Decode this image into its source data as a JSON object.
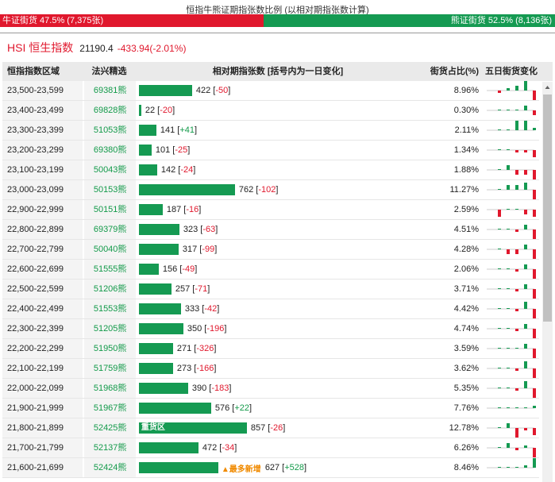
{
  "header": {
    "title": "恒指牛熊证期指张数比例 (以相对期指张数计算)",
    "bull_label": "牛证街货 47.5% (7,375张)",
    "bear_label": "熊证街货 52.5% (8,136张)",
    "bull_pct": 47.5
  },
  "index": {
    "name": "HSI 恒生指数",
    "value": "21190.4",
    "change": "-433.94(-2.01%)"
  },
  "table": {
    "columns": [
      "恒指指数区域",
      "法兴精选",
      "相对期指张数 [括号内为一日变化]",
      "街货占比(%)",
      "五日街货变化"
    ],
    "max_value": 857,
    "rows": [
      {
        "range": "23,500-23,599",
        "code": "69381熊",
        "value": 422,
        "num": "422",
        "change": "-50",
        "sign": "neg",
        "tag": "",
        "note": "",
        "pct": "8.96%",
        "spark": [
          -1,
          1,
          2,
          4,
          -4
        ]
      },
      {
        "range": "23,400-23,499",
        "code": "69828熊",
        "value": 22,
        "num": "22",
        "change": "-20",
        "sign": "neg",
        "tag": "",
        "note": "",
        "pct": "0.30%",
        "spark": [
          0,
          0,
          0,
          2,
          -2
        ]
      },
      {
        "range": "23,300-23,399",
        "code": "51053熊",
        "value": 141,
        "num": "141",
        "change": "+41",
        "sign": "pos",
        "tag": "",
        "note": "",
        "pct": "2.11%",
        "spark": [
          0,
          0,
          4,
          4,
          1
        ]
      },
      {
        "range": "23,200-23,299",
        "code": "69380熊",
        "value": 101,
        "num": "101",
        "change": "-25",
        "sign": "neg",
        "tag": "",
        "note": "",
        "pct": "1.34%",
        "spark": [
          0,
          0,
          -1,
          -1,
          -3
        ]
      },
      {
        "range": "23,100-23,199",
        "code": "50043熊",
        "value": 142,
        "num": "142",
        "change": "-24",
        "sign": "neg",
        "tag": "",
        "note": "",
        "pct": "1.88%",
        "spark": [
          0,
          2,
          -2,
          -2,
          -4
        ]
      },
      {
        "range": "23,000-23,099",
        "code": "50153熊",
        "value": 762,
        "num": "762",
        "change": "-102",
        "sign": "neg",
        "tag": "",
        "note": "",
        "pct": "11.27%",
        "spark": [
          0,
          2,
          2,
          3,
          -4
        ]
      },
      {
        "range": "22,900-22,999",
        "code": "50151熊",
        "value": 187,
        "num": "187",
        "change": "-16",
        "sign": "neg",
        "tag": "",
        "note": "",
        "pct": "2.59%",
        "spark": [
          -3,
          0,
          0,
          -2,
          -3
        ]
      },
      {
        "range": "22,800-22,899",
        "code": "69379熊",
        "value": 323,
        "num": "323",
        "change": "-63",
        "sign": "neg",
        "tag": "",
        "note": "",
        "pct": "4.51%",
        "spark": [
          0,
          0,
          -1,
          2,
          -4
        ]
      },
      {
        "range": "22,700-22,799",
        "code": "50040熊",
        "value": 317,
        "num": "317",
        "change": "-99",
        "sign": "neg",
        "tag": "",
        "note": "",
        "pct": "4.28%",
        "spark": [
          0,
          -2,
          -2,
          2,
          -4
        ]
      },
      {
        "range": "22,600-22,699",
        "code": "51555熊",
        "value": 156,
        "num": "156",
        "change": "-49",
        "sign": "neg",
        "tag": "",
        "note": "",
        "pct": "2.06%",
        "spark": [
          0,
          0,
          -1,
          2,
          -4
        ]
      },
      {
        "range": "22,500-22,599",
        "code": "51206熊",
        "value": 257,
        "num": "257",
        "change": "-71",
        "sign": "neg",
        "tag": "",
        "note": "",
        "pct": "3.71%",
        "spark": [
          0,
          0,
          -1,
          2,
          -4
        ]
      },
      {
        "range": "22,400-22,499",
        "code": "51553熊",
        "value": 333,
        "num": "333",
        "change": "-42",
        "sign": "neg",
        "tag": "",
        "note": "",
        "pct": "4.42%",
        "spark": [
          0,
          0,
          -1,
          3,
          -4
        ]
      },
      {
        "range": "22,300-22,399",
        "code": "51205熊",
        "value": 350,
        "num": "350",
        "change": "-196",
        "sign": "neg",
        "tag": "",
        "note": "",
        "pct": "4.74%",
        "spark": [
          0,
          0,
          -1,
          2,
          -4
        ]
      },
      {
        "range": "22,200-22,299",
        "code": "51950熊",
        "value": 271,
        "num": "271",
        "change": "-326",
        "sign": "neg",
        "tag": "",
        "note": "",
        "pct": "3.59%",
        "spark": [
          0,
          0,
          0,
          2,
          -4
        ]
      },
      {
        "range": "22,100-22,199",
        "code": "51759熊",
        "value": 273,
        "num": "273",
        "change": "-166",
        "sign": "neg",
        "tag": "",
        "note": "",
        "pct": "3.62%",
        "spark": [
          0,
          0,
          -1,
          3,
          -4
        ]
      },
      {
        "range": "22,000-22,099",
        "code": "51968熊",
        "value": 390,
        "num": "390",
        "change": "-183",
        "sign": "neg",
        "tag": "",
        "note": "",
        "pct": "5.35%",
        "spark": [
          0,
          0,
          -1,
          3,
          -4
        ]
      },
      {
        "range": "21,900-21,999",
        "code": "51967熊",
        "value": 576,
        "num": "576",
        "change": "+22",
        "sign": "pos",
        "tag": "",
        "note": "",
        "pct": "7.76%",
        "spark": [
          0,
          0,
          0,
          0,
          1
        ]
      },
      {
        "range": "21,800-21,899",
        "code": "52425熊",
        "value": 857,
        "num": "857",
        "change": "-26",
        "sign": "neg",
        "tag": "重货区",
        "note": "",
        "pct": "12.78%",
        "spark": [
          0,
          2,
          -4,
          -1,
          -3
        ]
      },
      {
        "range": "21,700-21,799",
        "code": "52137熊",
        "value": 472,
        "num": "472",
        "change": "-34",
        "sign": "neg",
        "tag": "",
        "note": "",
        "pct": "6.26%",
        "spark": [
          0,
          2,
          -1,
          1,
          -4
        ]
      },
      {
        "range": "21,600-21,699",
        "code": "52424熊",
        "value": 627,
        "num": "627",
        "change": "+528",
        "sign": "pos",
        "tag": "",
        "note": "▲最多新增",
        "pct": "8.46%",
        "spark": [
          0,
          0,
          0,
          1,
          4
        ]
      }
    ]
  },
  "colors": {
    "bull": "#e0182d",
    "bear": "#159a52",
    "spark_up": "#159a52",
    "spark_down": "#e0182d"
  }
}
